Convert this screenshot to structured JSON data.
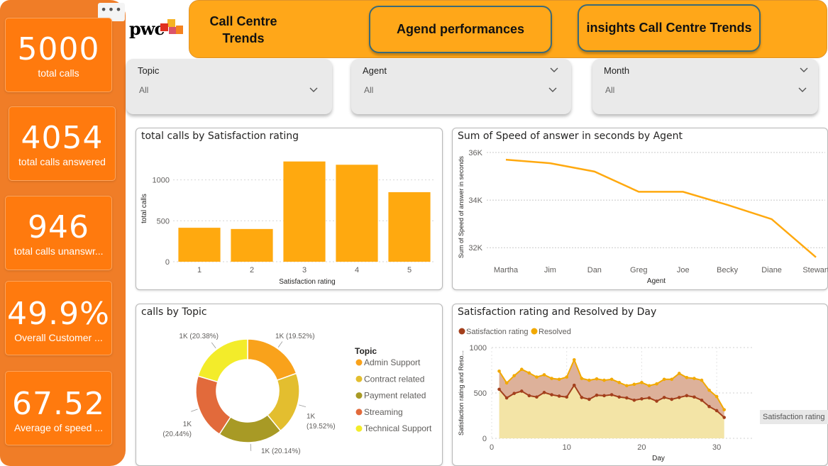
{
  "sidebar": {
    "more_icon": "more-options-icon",
    "kpis": [
      {
        "value": "5000",
        "label": "total calls"
      },
      {
        "value": "4054",
        "label": "total calls answered"
      },
      {
        "value": "946",
        "label": "total calls unanswr..."
      },
      {
        "value": "49.9%",
        "label": "Overall Customer ..."
      },
      {
        "value": "67.52",
        "label": "Average of speed ..."
      }
    ]
  },
  "header": {
    "logo": "pwc",
    "title_line1": "Call Centre",
    "title_line2": "Trends",
    "nav": [
      {
        "label": "Agend performances"
      },
      {
        "label": "insights Call Centre Trends"
      }
    ]
  },
  "filters": [
    {
      "label": "Topic",
      "value": "All"
    },
    {
      "label": "Agent",
      "value": "All"
    },
    {
      "label": "Month",
      "value": "All"
    }
  ],
  "colors": {
    "orange": "#ffa719",
    "kpi": "#ff7a0e",
    "bar": "#ffa90f",
    "satisfaction": "#a33f1c",
    "resolved": "#f2a900"
  },
  "charts": {
    "bar_title": "total calls by Satisfaction rating",
    "line_title": "Sum of Speed of answer in seconds by Agent",
    "donut_title": "calls by Topic",
    "area_title": "Satisfaction rating and Resolved by Day",
    "tooltip_label": "Satisfaction rating"
  },
  "chart_data": [
    {
      "type": "bar",
      "title": "total calls by Satisfaction rating",
      "categories": [
        "1",
        "2",
        "3",
        "4",
        "5"
      ],
      "values": [
        415,
        400,
        1225,
        1185,
        850
      ],
      "xlabel": "Satisfaction rating",
      "ylabel": "total calls",
      "ylim": [
        0,
        1300
      ],
      "yticks": [
        "0",
        "500",
        "1000"
      ],
      "grid": true
    },
    {
      "type": "line",
      "title": "Sum of Speed of answer in seconds by Agent",
      "categories": [
        "Martha",
        "Jim",
        "Dan",
        "Greg",
        "Joe",
        "Becky",
        "Diane",
        "Stewart"
      ],
      "values": [
        35700,
        35550,
        35200,
        34350,
        34350,
        33800,
        33200,
        31600
      ],
      "xlabel": "Agent",
      "ylabel": "Sum of Speed of answer in seconds",
      "ylim": [
        31500,
        36000
      ],
      "yticks": [
        {
          "v": 32000,
          "t": "32K"
        },
        {
          "v": 34000,
          "t": "34K"
        },
        {
          "v": 36000,
          "t": "36K"
        }
      ],
      "grid": true
    },
    {
      "type": "pie",
      "title": "calls by Topic",
      "legend_title": "Topic",
      "legend_position": "right",
      "slices": [
        {
          "name": "Admin Support",
          "value": 19.52,
          "label": "1K (19.52%)",
          "color": "#f9a21b"
        },
        {
          "name": "Contract related",
          "value": 19.52,
          "label": "1K (19.52%)",
          "color": "#e3be2f"
        },
        {
          "name": "Payment related",
          "value": 20.14,
          "label": "1K (20.14%)",
          "color": "#a89a25"
        },
        {
          "name": "Streaming",
          "value": 20.44,
          "label": "1K (20.44%)",
          "color": "#e26a3b"
        },
        {
          "name": "Technical Support",
          "value": 20.38,
          "label": "1K (20.38%)",
          "color": "#f3ec2a"
        }
      ]
    },
    {
      "type": "area",
      "title": "Satisfaction rating and Resolved by Day",
      "xlabel": "Day",
      "ylabel": "Satisfaction rating and Reso...",
      "ylim": [
        0,
        1000
      ],
      "xlim": [
        0,
        35
      ],
      "yticks": [
        "0",
        "500",
        "1000"
      ],
      "xticks": [
        "0",
        "10",
        "20",
        "30"
      ],
      "legend_position": "top-left",
      "x": [
        1,
        2,
        3,
        4,
        5,
        6,
        7,
        8,
        9,
        10,
        11,
        12,
        13,
        14,
        15,
        16,
        17,
        18,
        19,
        20,
        21,
        22,
        23,
        24,
        25,
        26,
        27,
        28,
        29,
        30,
        31
      ],
      "series": [
        {
          "name": "Satisfaction rating",
          "color": "#a33f1c",
          "values": [
            540,
            445,
            495,
            520,
            470,
            455,
            505,
            480,
            465,
            455,
            585,
            450,
            430,
            475,
            470,
            480,
            455,
            445,
            420,
            435,
            445,
            410,
            450,
            430,
            450,
            470,
            455,
            420,
            350,
            305,
            230
          ]
        },
        {
          "name": "Resolved",
          "color": "#f2a900",
          "values": [
            740,
            610,
            690,
            760,
            720,
            675,
            700,
            660,
            650,
            675,
            865,
            660,
            640,
            655,
            640,
            650,
            615,
            580,
            595,
            615,
            580,
            600,
            650,
            650,
            715,
            670,
            660,
            640,
            530,
            460,
            315
          ]
        }
      ]
    }
  ]
}
